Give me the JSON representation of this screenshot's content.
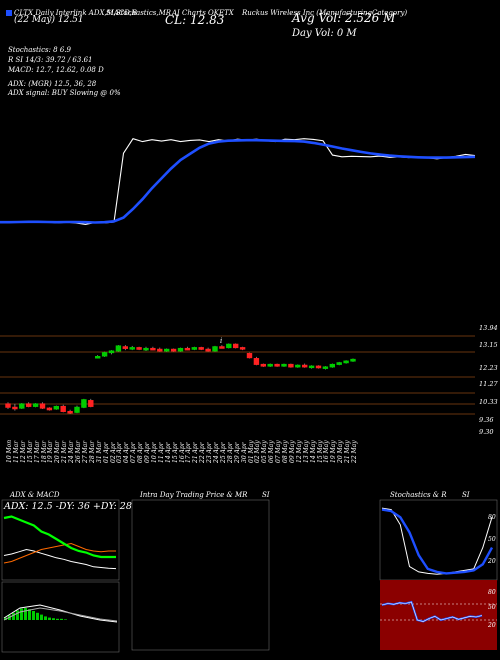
{
  "header": {
    "line1_left": "CLTX Daily Interlink ADX,MACD,B",
    "line1_mid": "SI,Stochastics,MR",
    "line1_mid2": "AI Charts OKETX",
    "line1_right": "Ruckus Wireless Inc (ManufacturingCategory)",
    "date_line": "(22 May) 12.51",
    "cl_label": "CL: 12.83",
    "avg_vol": "Avg Vol: 2.526  M",
    "day_vol": "Day Vol: 0  M",
    "stoch": "Stochastics: 8          6.9",
    "rsi": "R    SI  14/3: 39.72  / 63.61",
    "macd": "MACD: 12.7,   12.62,  0.08  D",
    "adx": "ADX:                    (MGR) 12.5,  36,  28",
    "adx_signal": "ADX  signal:                 BUY Slowing @ 0%",
    "marker_i": "i"
  },
  "colors": {
    "price": "#ffffff",
    "ma": "#1e4fff",
    "grid": "#8b4513",
    "up": "#00cc00",
    "down": "#ff2222",
    "rsi_bg": "#8b0000"
  },
  "price_scale": [
    "13.94",
    "13.15",
    "12.23",
    "11.27",
    "10.33",
    "9.36",
    "9.30"
  ],
  "date_labels": [
    "10 Mon",
    "11 Mar",
    "12 Mar",
    "15 Mar",
    "17 Mar",
    "18 Mar",
    "19 Mar",
    "20 Mar",
    "21 Mar",
    "24 Mar",
    "26 Mar",
    "27 Mar",
    "28 Mar",
    "31 Mar",
    "01 Apr",
    "02 Apr",
    "03 Apr",
    "04 Apr",
    "07 Apr",
    "08 Apr",
    "09 Apr",
    "10 Apr",
    "11 Apr",
    "14 Apr",
    "15 Apr",
    "16 Apr",
    "17 Apr",
    "21 Apr",
    "22 Apr",
    "23 Apr",
    "24 Apr",
    "25 Apr",
    "28 Apr",
    "29 Apr",
    "30 Apr",
    "01 May",
    "02 May",
    "05 May",
    "06 May",
    "07 May",
    "08 May",
    "09 May",
    "12 May",
    "13 May",
    "14 May",
    "15 May",
    "16 May",
    "19 May",
    "20 May",
    "21 May",
    "22 May"
  ],
  "panels": {
    "adx_title": "ADX  & MACD",
    "adx_legend": "ADX: 12.5 -DY: 36 +DY: 28",
    "intraday_title": "Intra  Day Trading Price  & MR",
    "intraday_si": "SI",
    "stoch_title": "Stochastics & R",
    "stoch_si": "SI",
    "stoch_scale": [
      "80",
      "50",
      "20"
    ],
    "rsi_scale": [
      "80",
      "50",
      "20"
    ]
  },
  "chart_data": [
    {
      "type": "line",
      "name": "price_and_ma",
      "series": [
        {
          "name": "close",
          "values": [
            9.42,
            9.42,
            9.41,
            9.42,
            9.41,
            9.42,
            9.38,
            9.41,
            9.38,
            9.32,
            9.4,
            9.38,
            9.42,
            12.23,
            12.82,
            12.7,
            12.78,
            12.72,
            12.78,
            12.7,
            12.75,
            12.77,
            12.7,
            12.78,
            12.72,
            12.8,
            12.76,
            12.8,
            12.74,
            12.7,
            12.8,
            12.78,
            12.82,
            12.79,
            12.74,
            12.15,
            12.08,
            12.1,
            12.09,
            12.08,
            12.11,
            12.06,
            12.08,
            12.05,
            12.07,
            12.04,
            12.0,
            12.05,
            12.1,
            12.18,
            12.13
          ]
        },
        {
          "name": "ma",
          "values": [
            9.41,
            9.41,
            9.42,
            9.43,
            9.43,
            9.42,
            9.41,
            9.42,
            9.42,
            9.41,
            9.4,
            9.41,
            9.45,
            9.6,
            9.95,
            10.35,
            10.8,
            11.2,
            11.6,
            11.95,
            12.2,
            12.45,
            12.62,
            12.7,
            12.74,
            12.75,
            12.76,
            12.76,
            12.75,
            12.74,
            12.73,
            12.72,
            12.7,
            12.65,
            12.58,
            12.5,
            12.42,
            12.35,
            12.28,
            12.22,
            12.17,
            12.13,
            12.1,
            12.08,
            12.06,
            12.05,
            12.05,
            12.05,
            12.06,
            12.07,
            12.08
          ]
        }
      ]
    },
    {
      "type": "candlestick",
      "name": "candles",
      "ylim": [
        9.3,
        13.94
      ],
      "values": [
        [
          9.9,
          10.0,
          9.6,
          9.7
        ],
        [
          9.7,
          9.9,
          9.5,
          9.65
        ],
        [
          9.65,
          9.95,
          9.6,
          9.9
        ],
        [
          9.9,
          10.0,
          9.7,
          9.75
        ],
        [
          9.75,
          9.95,
          9.7,
          9.9
        ],
        [
          9.9,
          10.0,
          9.6,
          9.65
        ],
        [
          9.65,
          9.7,
          9.5,
          9.55
        ],
        [
          9.6,
          9.8,
          9.55,
          9.75
        ],
        [
          9.75,
          9.85,
          9.4,
          9.45
        ],
        [
          9.45,
          9.55,
          9.3,
          9.4
        ],
        [
          9.4,
          9.8,
          9.35,
          9.7
        ],
        [
          9.7,
          10.2,
          9.65,
          10.15
        ],
        [
          10.1,
          10.2,
          9.7,
          9.75
        ],
        [
          12.7,
          12.8,
          12.6,
          12.72
        ],
        [
          12.75,
          13.0,
          12.7,
          12.95
        ],
        [
          12.95,
          13.1,
          12.85,
          13.05
        ],
        [
          13.05,
          13.4,
          13.0,
          13.35
        ],
        [
          13.3,
          13.4,
          13.1,
          13.2
        ],
        [
          13.2,
          13.35,
          13.1,
          13.25
        ],
        [
          13.25,
          13.3,
          13.1,
          13.15
        ],
        [
          13.15,
          13.3,
          13.05,
          13.2
        ],
        [
          13.2,
          13.3,
          13.1,
          13.15
        ],
        [
          13.15,
          13.25,
          13.0,
          13.05
        ],
        [
          13.05,
          13.2,
          13.0,
          13.15
        ],
        [
          13.15,
          13.2,
          13.0,
          13.05
        ],
        [
          13.05,
          13.25,
          13.0,
          13.2
        ],
        [
          13.2,
          13.3,
          13.1,
          13.15
        ],
        [
          13.15,
          13.3,
          13.1,
          13.25
        ],
        [
          13.25,
          13.3,
          13.1,
          13.15
        ],
        [
          13.15,
          13.25,
          13.0,
          13.05
        ],
        [
          13.05,
          13.35,
          13.0,
          13.3
        ],
        [
          13.3,
          13.4,
          13.2,
          13.25
        ],
        [
          13.25,
          13.5,
          13.2,
          13.45
        ],
        [
          13.45,
          13.5,
          13.2,
          13.25
        ],
        [
          13.25,
          13.3,
          13.1,
          13.2
        ],
        [
          12.9,
          12.95,
          12.6,
          12.65
        ],
        [
          12.6,
          12.7,
          12.2,
          12.25
        ],
        [
          12.25,
          12.3,
          12.1,
          12.15
        ],
        [
          12.15,
          12.3,
          12.1,
          12.25
        ],
        [
          12.25,
          12.3,
          12.1,
          12.15
        ],
        [
          12.15,
          12.3,
          12.1,
          12.25
        ],
        [
          12.25,
          12.3,
          12.05,
          12.1
        ],
        [
          12.1,
          12.25,
          12.05,
          12.2
        ],
        [
          12.2,
          12.3,
          12.05,
          12.1
        ],
        [
          12.1,
          12.2,
          12.0,
          12.15
        ],
        [
          12.15,
          12.2,
          12.0,
          12.05
        ],
        [
          12.05,
          12.15,
          11.95,
          12.1
        ],
        [
          12.1,
          12.3,
          12.05,
          12.25
        ],
        [
          12.25,
          12.4,
          12.2,
          12.35
        ],
        [
          12.35,
          12.5,
          12.3,
          12.45
        ],
        [
          12.45,
          12.6,
          12.4,
          12.55
        ]
      ]
    },
    {
      "type": "line",
      "name": "adx",
      "series": [
        {
          "name": "ADX",
          "values": [
            30,
            32,
            35,
            38,
            36,
            33,
            30,
            27,
            25,
            22,
            20,
            18,
            15,
            14,
            13,
            12.5
          ]
        },
        {
          "name": "-DY",
          "values": [
            20,
            22,
            26,
            30,
            34,
            38,
            40,
            42,
            44,
            46,
            42,
            38,
            36,
            35,
            36,
            36
          ]
        },
        {
          "name": "+DY",
          "values": [
            80,
            82,
            78,
            74,
            70,
            62,
            58,
            52,
            46,
            40,
            36,
            34,
            30,
            28,
            28,
            28
          ]
        }
      ]
    },
    {
      "type": "line",
      "name": "stochastics",
      "ylim": [
        0,
        100
      ],
      "series": [
        {
          "name": "fast",
          "values": [
            92,
            90,
            70,
            15,
            8,
            6,
            5,
            6,
            8,
            10,
            12,
            40,
            80
          ]
        },
        {
          "name": "slow",
          "values": [
            90,
            88,
            80,
            60,
            30,
            12,
            8,
            6,
            7,
            8,
            10,
            18,
            40
          ]
        }
      ]
    },
    {
      "type": "line",
      "name": "rsi",
      "ylim": [
        0,
        100
      ],
      "series": [
        {
          "name": "rsi",
          "values": [
            60,
            62,
            61,
            63,
            62,
            64,
            40,
            38,
            42,
            45,
            40,
            42,
            44,
            41,
            43,
            45,
            44,
            46
          ]
        }
      ]
    }
  ]
}
